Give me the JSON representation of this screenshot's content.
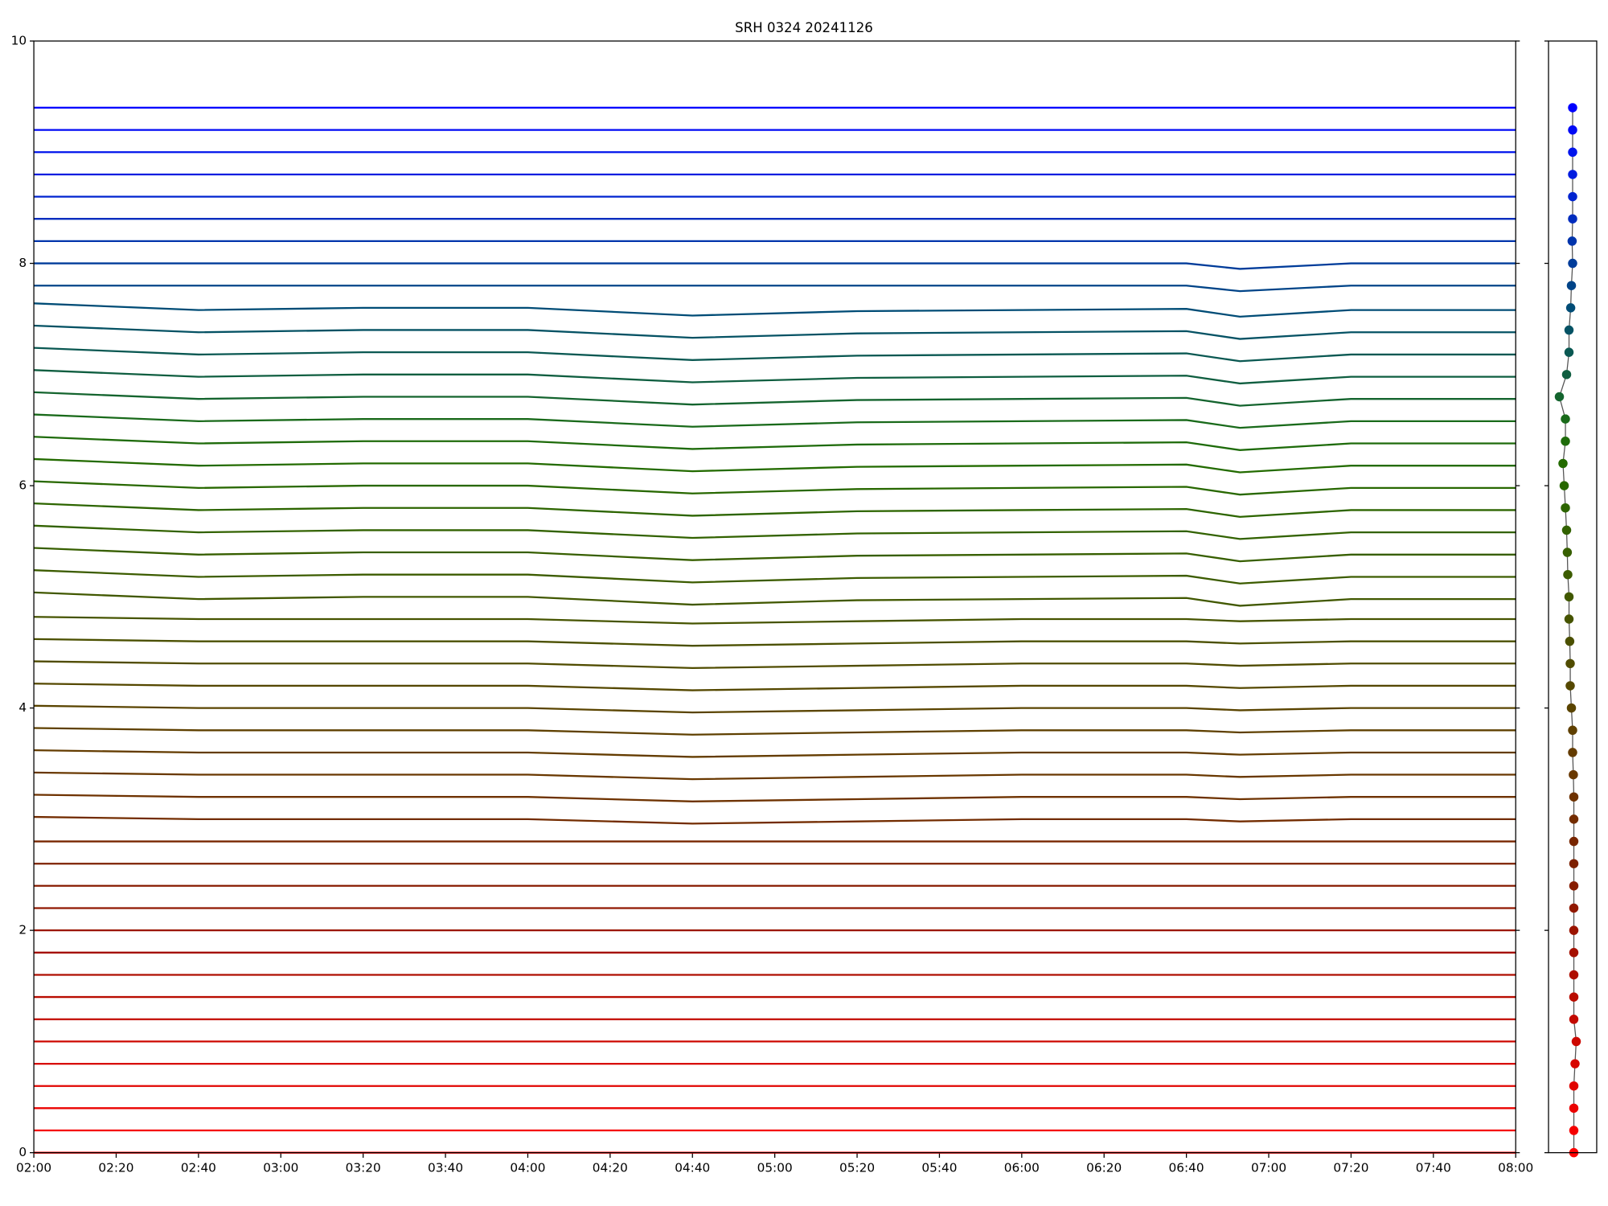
{
  "chart_data": [
    {
      "type": "line",
      "title": "SRH 0324 20241126",
      "x": [
        "02:00",
        "02:40",
        "03:20",
        "04:00",
        "04:40",
        "05:20",
        "06:00",
        "06:40",
        "06:53",
        "07:20",
        "08:00"
      ],
      "xlim": [
        "02:00",
        "08:00"
      ],
      "xticks": [
        "02:00",
        "02:20",
        "02:40",
        "03:00",
        "03:20",
        "03:40",
        "04:00",
        "04:20",
        "04:40",
        "05:00",
        "05:20",
        "05:40",
        "06:00",
        "06:20",
        "06:40",
        "07:00",
        "07:20",
        "07:40",
        "08:00"
      ],
      "ylim": [
        0,
        10
      ],
      "yticks": [
        0,
        2,
        4,
        6,
        8,
        10
      ],
      "series": [
        {
          "color": "#ff0000",
          "values": [
            0,
            0,
            0,
            0,
            0,
            0,
            0,
            0,
            0,
            0,
            0
          ]
        },
        {
          "color": "#f50000",
          "values": [
            0.2,
            0.2,
            0.2,
            0.2,
            0.2,
            0.2,
            0.2,
            0.2,
            0.2,
            0.2,
            0.2
          ]
        },
        {
          "color": "#eb0200",
          "values": [
            0.4,
            0.4,
            0.4,
            0.4,
            0.4,
            0.4,
            0.4,
            0.4,
            0.4,
            0.4,
            0.4
          ]
        },
        {
          "color": "#e10400",
          "values": [
            0.6,
            0.6,
            0.6,
            0.6,
            0.6,
            0.6,
            0.6,
            0.6,
            0.6,
            0.6,
            0.6
          ]
        },
        {
          "color": "#d70600",
          "values": [
            0.8,
            0.8,
            0.8,
            0.8,
            0.8,
            0.8,
            0.8,
            0.8,
            0.8,
            0.8,
            0.8
          ]
        },
        {
          "color": "#cd0800",
          "values": [
            1,
            1,
            1,
            1,
            1,
            1,
            1,
            1,
            1,
            1,
            1
          ]
        },
        {
          "color": "#c30a00",
          "values": [
            1.2,
            1.2,
            1.2,
            1.2,
            1.2,
            1.2,
            1.2,
            1.2,
            1.2,
            1.2,
            1.2
          ]
        },
        {
          "color": "#b90c00",
          "values": [
            1.4,
            1.4,
            1.4,
            1.4,
            1.4,
            1.4,
            1.4,
            1.4,
            1.4,
            1.4,
            1.4
          ]
        },
        {
          "color": "#af0e00",
          "values": [
            1.6,
            1.6,
            1.6,
            1.6,
            1.6,
            1.6,
            1.6,
            1.6,
            1.6,
            1.6,
            1.6
          ]
        },
        {
          "color": "#a51000",
          "values": [
            1.8,
            1.8,
            1.8,
            1.8,
            1.8,
            1.8,
            1.8,
            1.8,
            1.8,
            1.8,
            1.8
          ]
        },
        {
          "color": "#9b1400",
          "values": [
            2,
            2,
            2,
            2,
            2,
            2,
            2,
            2,
            2,
            2,
            2
          ]
        },
        {
          "color": "#911800",
          "values": [
            2.2,
            2.2,
            2.2,
            2.2,
            2.2,
            2.2,
            2.2,
            2.2,
            2.2,
            2.2,
            2.2
          ]
        },
        {
          "color": "#871c00",
          "values": [
            2.4,
            2.4,
            2.4,
            2.4,
            2.4,
            2.4,
            2.4,
            2.4,
            2.4,
            2.4,
            2.4
          ]
        },
        {
          "color": "#7d2000",
          "values": [
            2.6,
            2.6,
            2.6,
            2.6,
            2.6,
            2.6,
            2.6,
            2.6,
            2.6,
            2.6,
            2.6
          ]
        },
        {
          "color": "#782600",
          "values": [
            2.8,
            2.8,
            2.8,
            2.8,
            2.8,
            2.8,
            2.8,
            2.8,
            2.8,
            2.8,
            2.8
          ]
        },
        {
          "color": "#732c00",
          "values": [
            3.02,
            3,
            3,
            3,
            2.96,
            2.98,
            3,
            3,
            2.98,
            3,
            3
          ]
        },
        {
          "color": "#6e3200",
          "values": [
            3.22,
            3.2,
            3.2,
            3.2,
            3.16,
            3.18,
            3.2,
            3.2,
            3.18,
            3.2,
            3.2
          ]
        },
        {
          "color": "#693800",
          "values": [
            3.42,
            3.4,
            3.4,
            3.4,
            3.36,
            3.38,
            3.4,
            3.4,
            3.38,
            3.4,
            3.4
          ]
        },
        {
          "color": "#643c00",
          "values": [
            3.62,
            3.6,
            3.6,
            3.6,
            3.56,
            3.58,
            3.6,
            3.6,
            3.58,
            3.6,
            3.6
          ]
        },
        {
          "color": "#5f4000",
          "values": [
            3.82,
            3.8,
            3.8,
            3.8,
            3.76,
            3.78,
            3.8,
            3.8,
            3.78,
            3.8,
            3.8
          ]
        },
        {
          "color": "#5a4400",
          "values": [
            4.02,
            4,
            4,
            4,
            3.96,
            3.98,
            4,
            4,
            3.98,
            4,
            4
          ]
        },
        {
          "color": "#554800",
          "values": [
            4.22,
            4.2,
            4.2,
            4.2,
            4.16,
            4.18,
            4.2,
            4.2,
            4.18,
            4.2,
            4.2
          ]
        },
        {
          "color": "#504c00",
          "values": [
            4.42,
            4.4,
            4.4,
            4.4,
            4.36,
            4.38,
            4.4,
            4.4,
            4.38,
            4.4,
            4.4
          ]
        },
        {
          "color": "#4b5000",
          "values": [
            4.62,
            4.6,
            4.6,
            4.6,
            4.56,
            4.58,
            4.6,
            4.6,
            4.58,
            4.6,
            4.6
          ]
        },
        {
          "color": "#465400",
          "values": [
            4.82,
            4.8,
            4.8,
            4.8,
            4.76,
            4.78,
            4.8,
            4.8,
            4.78,
            4.8,
            4.8
          ]
        },
        {
          "color": "#415800",
          "values": [
            5.04,
            4.98,
            5,
            5,
            4.93,
            4.97,
            4.98,
            4.99,
            4.92,
            4.98,
            4.98
          ]
        },
        {
          "color": "#3c5c00",
          "values": [
            5.24,
            5.18,
            5.2,
            5.2,
            5.13,
            5.17,
            5.18,
            5.19,
            5.12,
            5.18,
            5.18
          ]
        },
        {
          "color": "#375f00",
          "values": [
            5.44,
            5.38,
            5.4,
            5.4,
            5.33,
            5.37,
            5.38,
            5.39,
            5.32,
            5.38,
            5.38
          ]
        },
        {
          "color": "#326200",
          "values": [
            5.64,
            5.58,
            5.6,
            5.6,
            5.53,
            5.57,
            5.58,
            5.59,
            5.52,
            5.58,
            5.58
          ]
        },
        {
          "color": "#2d6500",
          "values": [
            5.84,
            5.78,
            5.8,
            5.8,
            5.73,
            5.77,
            5.78,
            5.79,
            5.72,
            5.78,
            5.78
          ]
        },
        {
          "color": "#286800",
          "values": [
            6.04,
            5.98,
            6,
            6,
            5.93,
            5.97,
            5.98,
            5.99,
            5.92,
            5.98,
            5.98
          ]
        },
        {
          "color": "#236b00",
          "values": [
            6.24,
            6.18,
            6.2,
            6.2,
            6.13,
            6.17,
            6.18,
            6.19,
            6.12,
            6.18,
            6.18
          ]
        },
        {
          "color": "#1e6b0a",
          "values": [
            6.44,
            6.38,
            6.4,
            6.4,
            6.33,
            6.37,
            6.38,
            6.39,
            6.32,
            6.38,
            6.38
          ]
        },
        {
          "color": "#196a1a",
          "values": [
            6.64,
            6.58,
            6.6,
            6.6,
            6.53,
            6.57,
            6.58,
            6.59,
            6.52,
            6.58,
            6.58
          ]
        },
        {
          "color": "#14642e",
          "values": [
            6.84,
            6.78,
            6.8,
            6.8,
            6.73,
            6.77,
            6.78,
            6.79,
            6.72,
            6.78,
            6.78
          ]
        },
        {
          "color": "#0f5e40",
          "values": [
            7.04,
            6.98,
            7,
            7,
            6.93,
            6.97,
            6.98,
            6.99,
            6.92,
            6.98,
            6.98
          ]
        },
        {
          "color": "#0a5852",
          "values": [
            7.24,
            7.18,
            7.2,
            7.2,
            7.13,
            7.17,
            7.18,
            7.19,
            7.12,
            7.18,
            7.18
          ]
        },
        {
          "color": "#055264",
          "values": [
            7.44,
            7.38,
            7.4,
            7.4,
            7.33,
            7.37,
            7.38,
            7.39,
            7.32,
            7.38,
            7.38
          ]
        },
        {
          "color": "#004c76",
          "values": [
            7.64,
            7.58,
            7.6,
            7.6,
            7.53,
            7.57,
            7.58,
            7.59,
            7.52,
            7.58,
            7.58
          ]
        },
        {
          "color": "#004488",
          "values": [
            7.8,
            7.8,
            7.8,
            7.8,
            7.8,
            7.8,
            7.8,
            7.8,
            7.75,
            7.8,
            7.8
          ]
        },
        {
          "color": "#003c9a",
          "values": [
            8,
            8,
            8,
            8,
            8,
            8,
            8,
            8,
            7.95,
            8,
            8
          ]
        },
        {
          "color": "#0034ac",
          "values": [
            8.2,
            8.2,
            8.2,
            8.2,
            8.2,
            8.2,
            8.2,
            8.2,
            8.2,
            8.2,
            8.2
          ]
        },
        {
          "color": "#002cbe",
          "values": [
            8.4,
            8.4,
            8.4,
            8.4,
            8.4,
            8.4,
            8.4,
            8.4,
            8.4,
            8.4,
            8.4
          ]
        },
        {
          "color": "#0024d0",
          "values": [
            8.6,
            8.6,
            8.6,
            8.6,
            8.6,
            8.6,
            8.6,
            8.6,
            8.6,
            8.6,
            8.6
          ]
        },
        {
          "color": "#001ce0",
          "values": [
            8.8,
            8.8,
            8.8,
            8.8,
            8.8,
            8.8,
            8.8,
            8.8,
            8.8,
            8.8,
            8.8
          ]
        },
        {
          "color": "#0014ec",
          "values": [
            9,
            9,
            9,
            9,
            9,
            9,
            9,
            9,
            9,
            9,
            9
          ]
        },
        {
          "color": "#000af6",
          "values": [
            9.2,
            9.2,
            9.2,
            9.2,
            9.2,
            9.2,
            9.2,
            9.2,
            9.2,
            9.2,
            9.2
          ]
        },
        {
          "color": "#0000ff",
          "values": [
            9.4,
            9.4,
            9.4,
            9.4,
            9.4,
            9.4,
            9.4,
            9.4,
            9.4,
            9.4,
            9.4
          ]
        }
      ]
    },
    {
      "type": "scatter",
      "xlim": [
        -1,
        1
      ],
      "ylim": [
        0,
        10
      ],
      "yticks": [
        0,
        2,
        4,
        6,
        8,
        10
      ],
      "x": [
        0.05,
        0.05,
        0.05,
        0.05,
        0.1,
        0.15,
        0.05,
        0.05,
        0.05,
        0.05,
        0.05,
        0.05,
        0.05,
        0.05,
        0.05,
        0.05,
        0.05,
        0.03,
        0,
        0,
        -0.05,
        -0.1,
        -0.1,
        -0.12,
        -0.15,
        -0.15,
        -0.2,
        -0.22,
        -0.25,
        -0.3,
        -0.35,
        -0.4,
        -0.3,
        -0.3,
        -0.55,
        -0.25,
        -0.15,
        -0.15,
        -0.08,
        -0.05,
        0,
        -0.02,
        0,
        0,
        0,
        0,
        0,
        0
      ],
      "y": [
        0,
        0.2,
        0.4,
        0.6,
        0.8,
        1,
        1.2,
        1.4,
        1.6,
        1.8,
        2,
        2.2,
        2.4,
        2.6,
        2.8,
        3,
        3.2,
        3.4,
        3.6,
        3.8,
        4,
        4.2,
        4.4,
        4.6,
        4.8,
        5,
        5.2,
        5.4,
        5.6,
        5.8,
        6,
        6.2,
        6.4,
        6.6,
        6.8,
        7,
        7.2,
        7.4,
        7.6,
        7.8,
        8,
        8.2,
        8.4,
        8.6,
        8.8,
        9,
        9.2,
        9.4
      ],
      "colors": [
        "#ff0000",
        "#f50000",
        "#eb0200",
        "#e10400",
        "#d70600",
        "#cd0800",
        "#c30a00",
        "#b90c00",
        "#af0e00",
        "#a51000",
        "#9b1400",
        "#911800",
        "#871c00",
        "#7d2000",
        "#782600",
        "#732c00",
        "#6e3200",
        "#693800",
        "#643c00",
        "#5f4000",
        "#5a4400",
        "#554800",
        "#504c00",
        "#4b5000",
        "#465400",
        "#415800",
        "#3c5c00",
        "#375f00",
        "#326200",
        "#2d6500",
        "#286800",
        "#236b00",
        "#1e6b0a",
        "#196a1a",
        "#14642e",
        "#0f5e40",
        "#0a5852",
        "#055264",
        "#004c76",
        "#004488",
        "#003c9a",
        "#0034ac",
        "#002cbe",
        "#0024d0",
        "#001ce0",
        "#0014ec",
        "#000af6",
        "#0000ff"
      ]
    }
  ]
}
